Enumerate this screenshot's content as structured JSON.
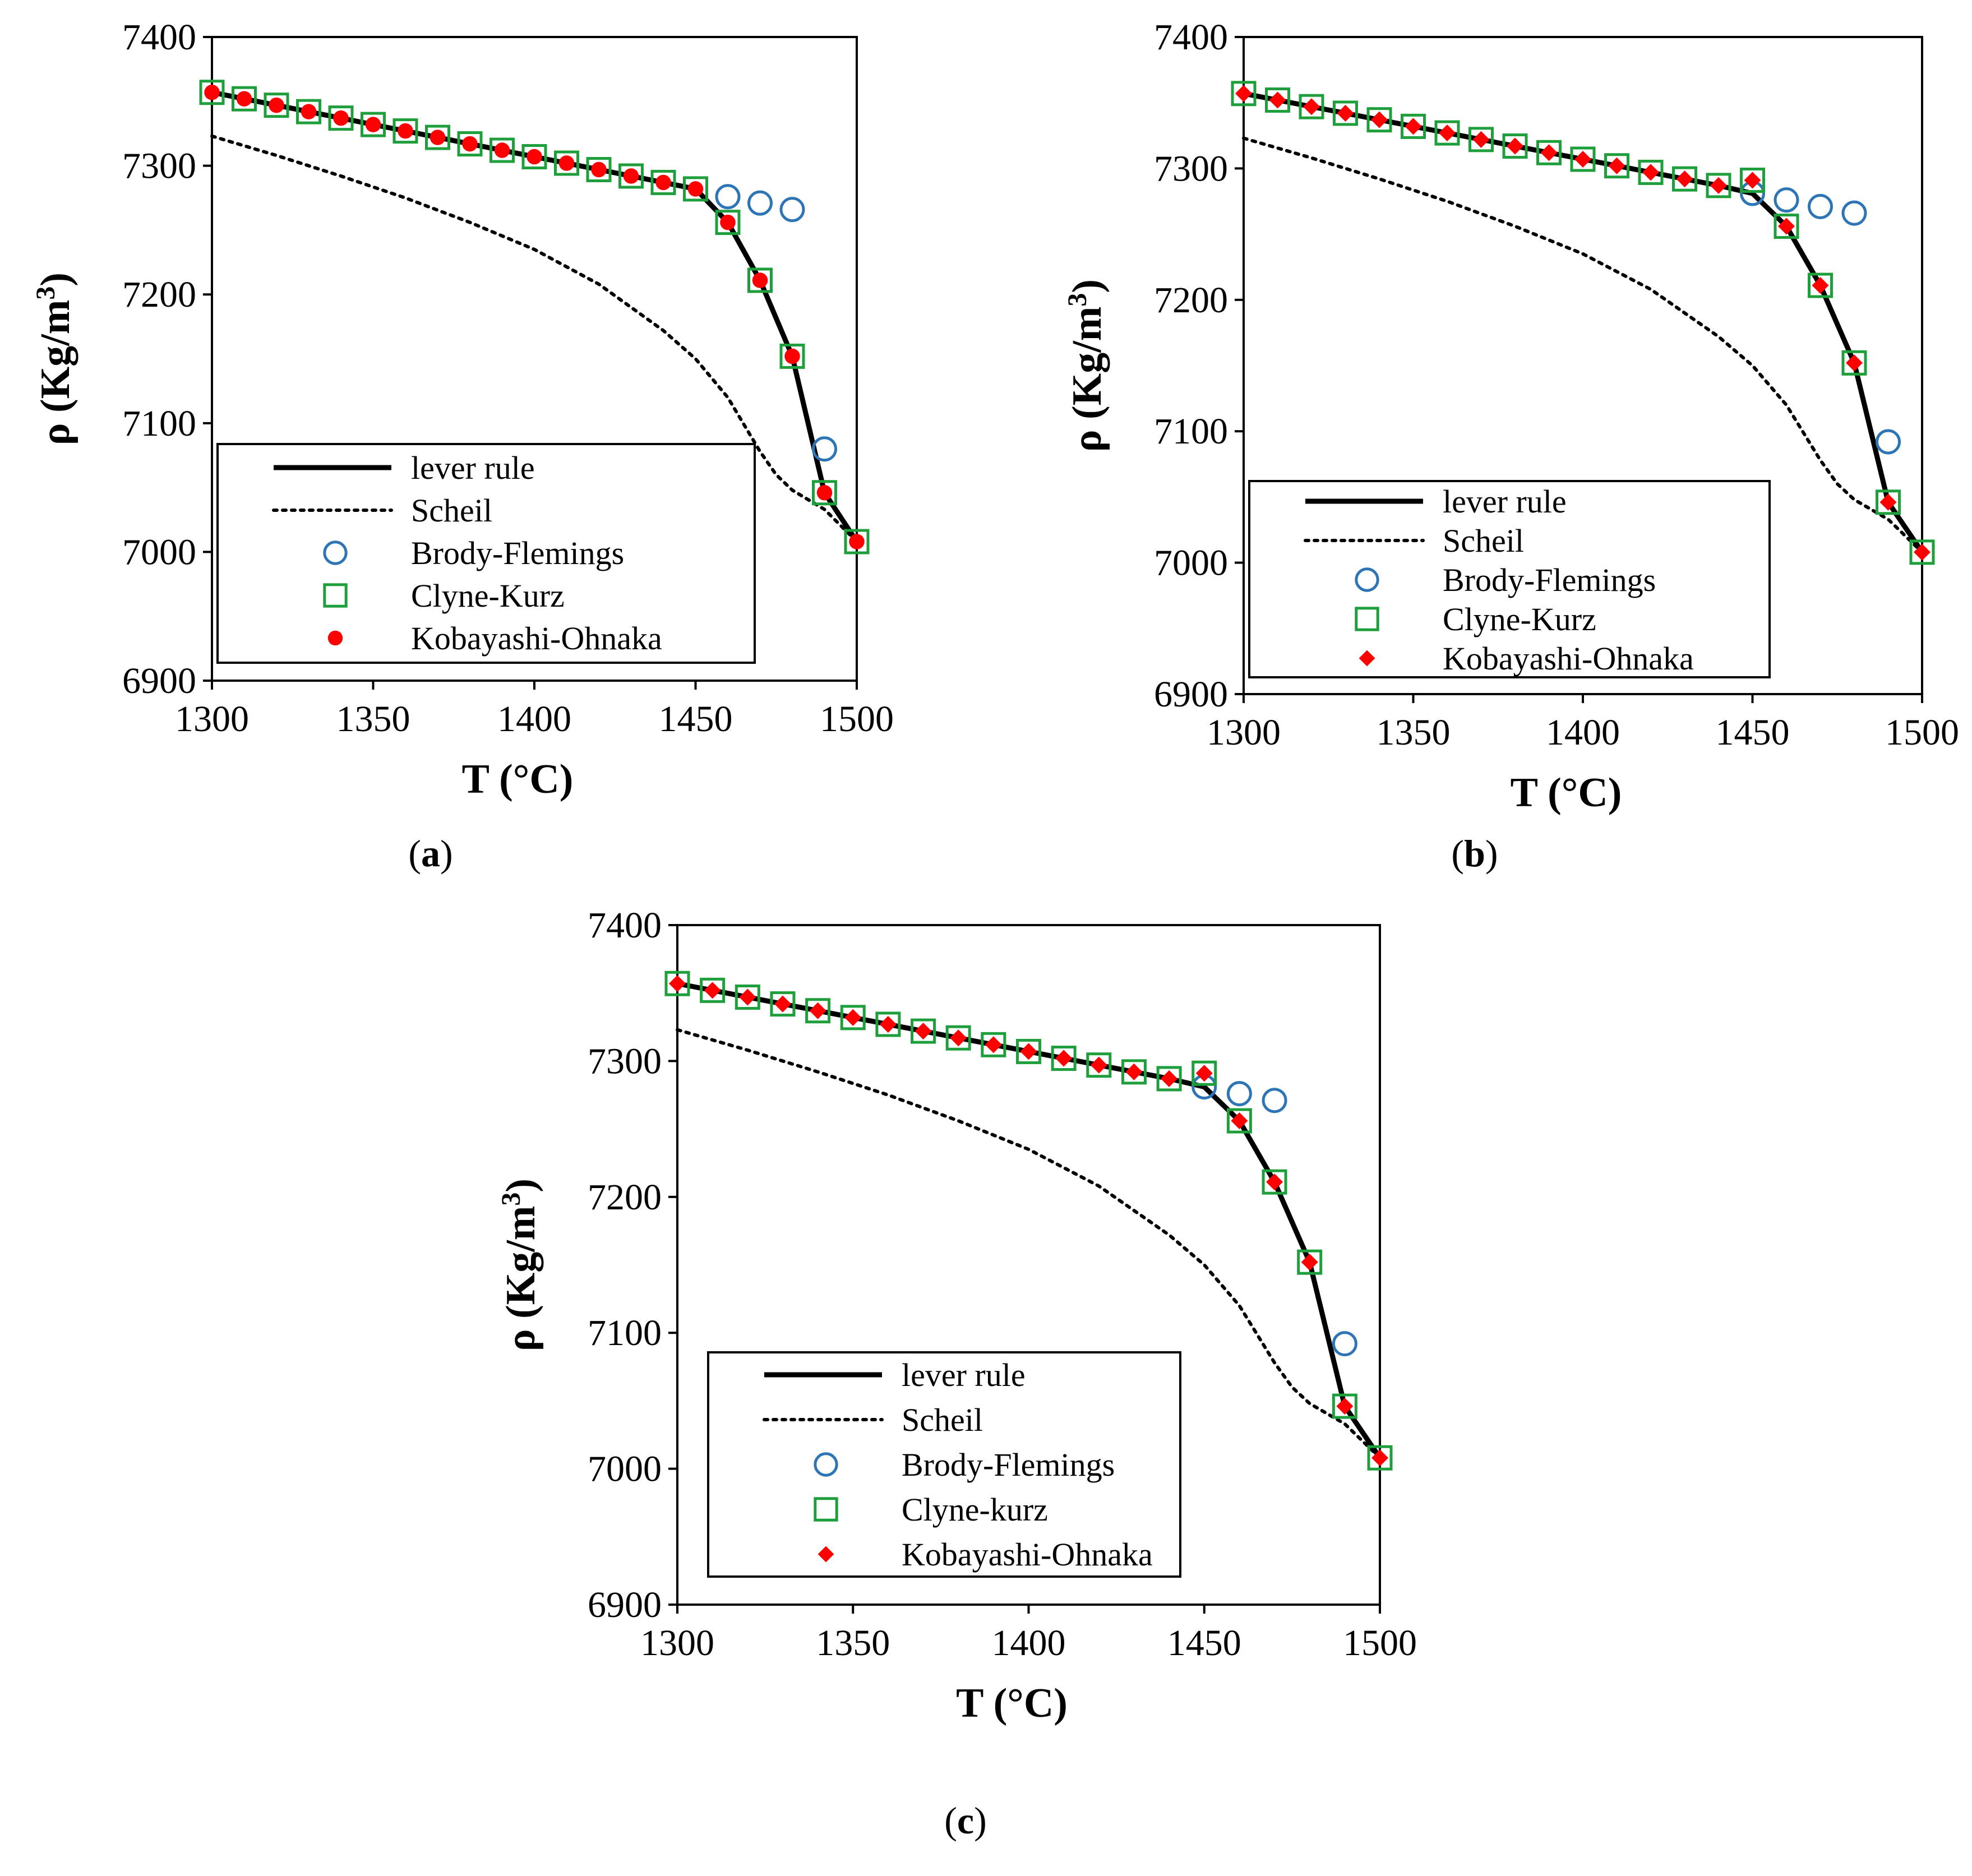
{
  "chart_data": [
    {
      "type": "line",
      "panel_label": "a",
      "xlabel": "T (°C)",
      "ylabel_main": "ρ (Kg/m",
      "ylabel_sup": "3",
      "ylabel_close": ")",
      "xlim": [
        1300,
        1500
      ],
      "ylim": [
        6900,
        7400
      ],
      "xticks": [
        "1300",
        "1350",
        "1400",
        "1450",
        "1500"
      ],
      "yticks": [
        "6900",
        "7000",
        "7100",
        "7200",
        "7300",
        "7400"
      ],
      "legend": {
        "placement": "lower-left",
        "entries": [
          "lever rule",
          "Scheil",
          "Brody-Flemings",
          "Clyne-Kurz",
          "Kobayashi-Ohnaka"
        ]
      },
      "kobayashi_marker": "circle",
      "series": [
        {
          "name": "lever rule",
          "style": "solid",
          "x": [
            1300,
            1310,
            1320,
            1330,
            1340,
            1350,
            1360,
            1370,
            1380,
            1390,
            1400,
            1410,
            1420,
            1430,
            1440,
            1450,
            1460,
            1470,
            1480,
            1490,
            1500
          ],
          "y": [
            7357,
            7352,
            7347,
            7342,
            7337,
            7332,
            7327,
            7322,
            7317,
            7312,
            7307,
            7302,
            7297,
            7292,
            7287,
            7282,
            7256,
            7211,
            7152,
            7046,
            7008
          ]
        },
        {
          "name": "Scheil",
          "style": "dotted",
          "x": [
            1300,
            1320,
            1340,
            1360,
            1380,
            1400,
            1420,
            1440,
            1450,
            1460,
            1470,
            1475,
            1480,
            1490,
            1500
          ],
          "y": [
            7323,
            7308,
            7292,
            7275,
            7256,
            7235,
            7208,
            7172,
            7150,
            7120,
            7078,
            7060,
            7048,
            7033,
            7008
          ]
        },
        {
          "name": "Brody-Flemings",
          "marker": "open-circle",
          "x": [
            1460,
            1470,
            1480,
            1490
          ],
          "y": [
            7276,
            7271,
            7266,
            7080
          ]
        },
        {
          "name": "Clyne-Kurz",
          "marker": "open-square",
          "x": [
            1300,
            1310,
            1320,
            1330,
            1340,
            1350,
            1360,
            1370,
            1380,
            1390,
            1400,
            1410,
            1420,
            1430,
            1440,
            1450,
            1460,
            1470,
            1480,
            1490,
            1500
          ],
          "y": [
            7357,
            7352,
            7347,
            7342,
            7337,
            7332,
            7327,
            7322,
            7317,
            7312,
            7307,
            7302,
            7297,
            7292,
            7287,
            7282,
            7256,
            7211,
            7152,
            7046,
            7008
          ]
        },
        {
          "name": "Kobayashi-Ohnaka",
          "marker": "filled-circle",
          "x": [
            1300,
            1310,
            1320,
            1330,
            1340,
            1350,
            1360,
            1370,
            1380,
            1390,
            1400,
            1410,
            1420,
            1430,
            1440,
            1450,
            1460,
            1470,
            1480,
            1490,
            1500
          ],
          "y": [
            7357,
            7352,
            7347,
            7342,
            7337,
            7332,
            7327,
            7322,
            7317,
            7312,
            7307,
            7302,
            7297,
            7292,
            7287,
            7282,
            7256,
            7211,
            7152,
            7046,
            7008
          ]
        }
      ]
    },
    {
      "type": "line",
      "panel_label": "b",
      "xlabel": "T (°C)",
      "ylabel_main": "ρ (Kg/m",
      "ylabel_sup": "3",
      "ylabel_close": ")",
      "xlim": [
        1300,
        1500
      ],
      "ylim": [
        6900,
        7400
      ],
      "xticks": [
        "1300",
        "1350",
        "1400",
        "1450",
        "1500"
      ],
      "yticks": [
        "6900",
        "7000",
        "7100",
        "7200",
        "7300",
        "7400"
      ],
      "legend": {
        "placement": "lower-left",
        "entries": [
          "lever rule",
          "Scheil",
          "Brody-Flemings",
          "Clyne-Kurz",
          "Kobayashi-Ohnaka"
        ]
      },
      "kobayashi_marker": "diamond",
      "series": [
        {
          "name": "lever rule",
          "style": "solid",
          "x": [
            1300,
            1310,
            1320,
            1330,
            1340,
            1350,
            1360,
            1370,
            1380,
            1390,
            1400,
            1410,
            1420,
            1430,
            1440,
            1450,
            1460,
            1470,
            1480,
            1490,
            1500
          ],
          "y": [
            7357,
            7352,
            7347,
            7342,
            7337,
            7332,
            7327,
            7322,
            7317,
            7312,
            7307,
            7302,
            7297,
            7292,
            7287,
            7281,
            7256,
            7211,
            7152,
            7046,
            7008
          ]
        },
        {
          "name": "Scheil",
          "style": "dotted",
          "x": [
            1300,
            1320,
            1340,
            1360,
            1380,
            1400,
            1420,
            1440,
            1450,
            1460,
            1470,
            1475,
            1480,
            1490,
            1500
          ],
          "y": [
            7323,
            7308,
            7292,
            7275,
            7256,
            7235,
            7208,
            7172,
            7150,
            7120,
            7078,
            7060,
            7048,
            7033,
            7008
          ]
        },
        {
          "name": "Brody-Flemings",
          "marker": "open-circle",
          "x": [
            1450,
            1460,
            1470,
            1480,
            1490
          ],
          "y": [
            7281,
            7276,
            7271,
            7266,
            7092
          ]
        },
        {
          "name": "Clyne-Kurz",
          "marker": "open-square",
          "x": [
            1300,
            1310,
            1320,
            1330,
            1340,
            1350,
            1360,
            1370,
            1380,
            1390,
            1400,
            1410,
            1420,
            1430,
            1440,
            1450,
            1460,
            1470,
            1480,
            1490,
            1500
          ],
          "y": [
            7357,
            7352,
            7347,
            7342,
            7337,
            7332,
            7327,
            7322,
            7317,
            7312,
            7307,
            7302,
            7297,
            7292,
            7287,
            7291,
            7256,
            7211,
            7152,
            7046,
            7008
          ]
        },
        {
          "name": "Kobayashi-Ohnaka",
          "marker": "filled-diamond",
          "x": [
            1300,
            1310,
            1320,
            1330,
            1340,
            1350,
            1360,
            1370,
            1380,
            1390,
            1400,
            1410,
            1420,
            1430,
            1440,
            1450,
            1460,
            1470,
            1480,
            1490,
            1500
          ],
          "y": [
            7357,
            7352,
            7347,
            7342,
            7337,
            7332,
            7327,
            7322,
            7317,
            7312,
            7307,
            7302,
            7297,
            7292,
            7287,
            7291,
            7256,
            7211,
            7152,
            7046,
            7008
          ]
        }
      ]
    },
    {
      "type": "line",
      "panel_label": "c",
      "xlabel": "T (°C)",
      "ylabel_main": "ρ (Kg/m",
      "ylabel_sup": "3",
      "ylabel_close": ")",
      "xlim": [
        1300,
        1500
      ],
      "ylim": [
        6900,
        7400
      ],
      "xticks": [
        "1300",
        "1350",
        "1400",
        "1450",
        "1500"
      ],
      "yticks": [
        "6900",
        "7000",
        "7100",
        "7200",
        "7300",
        "7400"
      ],
      "legend": {
        "placement": "lower-left",
        "entries": [
          "lever rule",
          "Scheil",
          "Brody-Flemings",
          "Clyne-kurz",
          "Kobayashi-Ohnaka"
        ]
      },
      "kobayashi_marker": "diamond",
      "series": [
        {
          "name": "lever rule",
          "style": "solid",
          "x": [
            1300,
            1310,
            1320,
            1330,
            1340,
            1350,
            1360,
            1370,
            1380,
            1390,
            1400,
            1410,
            1420,
            1430,
            1440,
            1450,
            1460,
            1470,
            1480,
            1490,
            1500
          ],
          "y": [
            7357,
            7352,
            7347,
            7342,
            7337,
            7332,
            7327,
            7322,
            7317,
            7312,
            7307,
            7302,
            7297,
            7292,
            7287,
            7281,
            7256,
            7211,
            7152,
            7046,
            7008
          ]
        },
        {
          "name": "Scheil",
          "style": "dotted",
          "x": [
            1300,
            1320,
            1340,
            1360,
            1380,
            1400,
            1420,
            1440,
            1450,
            1460,
            1470,
            1475,
            1480,
            1490,
            1500
          ],
          "y": [
            7323,
            7308,
            7292,
            7275,
            7256,
            7235,
            7208,
            7172,
            7150,
            7120,
            7078,
            7060,
            7048,
            7033,
            7008
          ]
        },
        {
          "name": "Brody-Flemings",
          "marker": "open-circle",
          "x": [
            1450,
            1460,
            1470,
            1490
          ],
          "y": [
            7281,
            7276,
            7271,
            7092
          ]
        },
        {
          "name": "Clyne-kurz",
          "marker": "open-square",
          "x": [
            1300,
            1310,
            1320,
            1330,
            1340,
            1350,
            1360,
            1370,
            1380,
            1390,
            1400,
            1410,
            1420,
            1430,
            1440,
            1450,
            1460,
            1470,
            1480,
            1490,
            1500
          ],
          "y": [
            7357,
            7352,
            7347,
            7342,
            7337,
            7332,
            7327,
            7322,
            7317,
            7312,
            7307,
            7302,
            7297,
            7292,
            7287,
            7291,
            7256,
            7211,
            7152,
            7046,
            7008
          ]
        },
        {
          "name": "Kobayashi-Ohnaka",
          "marker": "filled-diamond",
          "x": [
            1300,
            1310,
            1320,
            1330,
            1340,
            1350,
            1360,
            1370,
            1380,
            1390,
            1400,
            1410,
            1420,
            1430,
            1440,
            1450,
            1460,
            1470,
            1480,
            1490,
            1500
          ],
          "y": [
            7357,
            7352,
            7347,
            7342,
            7337,
            7332,
            7327,
            7322,
            7317,
            7312,
            7307,
            7302,
            7297,
            7292,
            7287,
            7291,
            7256,
            7211,
            7152,
            7046,
            7008
          ]
        }
      ]
    }
  ],
  "colors": {
    "brody": "#2e75b6",
    "clyne": "#1f9e3c",
    "kobayashi": "#ff0000",
    "line": "#000000"
  }
}
